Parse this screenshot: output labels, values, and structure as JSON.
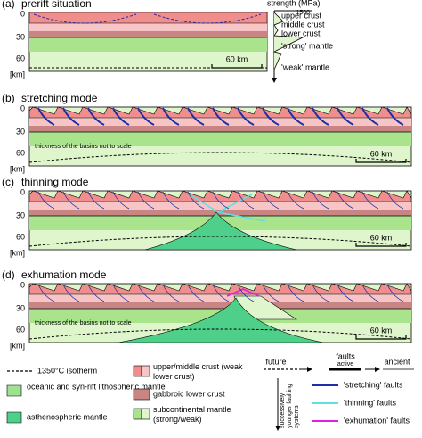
{
  "panels": [
    {
      "letter": "(a)",
      "title": "prerift situation",
      "depths": [
        0,
        30,
        60
      ],
      "unit": "[km]",
      "scale": "60 km"
    },
    {
      "letter": "(b)",
      "title": "stretching mode",
      "depths": [
        0,
        30,
        60
      ],
      "unit": "[km]",
      "scale": "60 km",
      "note": "thickness of the basins not to scale"
    },
    {
      "letter": "(c)",
      "title": "thinning mode",
      "depths": [
        0,
        30,
        60
      ],
      "unit": "[km]",
      "scale": "60 km"
    },
    {
      "letter": "(d)",
      "title": "exhumation mode",
      "depths": [
        0,
        30,
        60
      ],
      "unit": "[km]",
      "scale": "60 km",
      "note": "thickness of the basins not to scale"
    }
  ],
  "strength": {
    "title": "strength (MPa)",
    "max": 1500,
    "layers": [
      "upper crust",
      "middle crust",
      "lower crust",
      "'strong' mantle",
      "'weak' mantle"
    ]
  },
  "legend": {
    "isotherm": "1350°C isotherm",
    "oceanic": "oceanic and syn-rift lithospheric mantle",
    "astheno": "asthenospheric mantle",
    "crust": "upper/middle crust (weak lower crust)",
    "gabbro": "gabbroic lower crust",
    "subcont": "subcontinental mantle (strong/weak)",
    "future": "future",
    "faults": "faults",
    "active": "active",
    "ancient": "ancient",
    "younger": "successively younger faulting systems",
    "stretching": "'stretching' faults",
    "thinning": "'thinning' faults",
    "exhumation": "'exhumation' faults"
  }
}
